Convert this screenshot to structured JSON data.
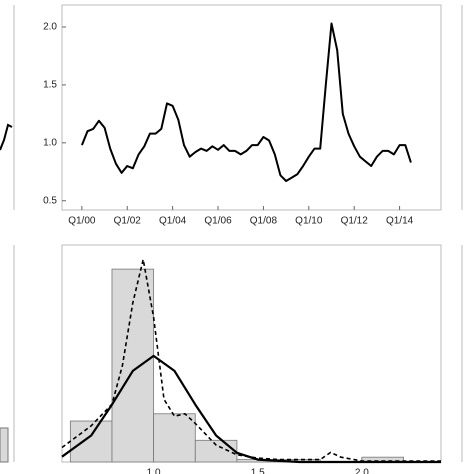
{
  "chart_data": [
    {
      "type": "line",
      "color": "#000000",
      "x": [
        0,
        1,
        2,
        3,
        4,
        5,
        6,
        7,
        8,
        9,
        10,
        11,
        12,
        13,
        14,
        15,
        16,
        17,
        18,
        19,
        20,
        21,
        22,
        23,
        24,
        25,
        26,
        27,
        28,
        29,
        30,
        31,
        32,
        33,
        34,
        35,
        36,
        37,
        38,
        39,
        40,
        41,
        42,
        43,
        44,
        45,
        46,
        47,
        48,
        49,
        50,
        51,
        52,
        53,
        54,
        55,
        56,
        57,
        58
      ],
      "values": [
        0.98,
        1.1,
        1.12,
        1.19,
        1.13,
        0.95,
        0.82,
        0.74,
        0.8,
        0.78,
        0.9,
        0.97,
        1.08,
        1.08,
        1.12,
        1.34,
        1.32,
        1.2,
        0.98,
        0.88,
        0.92,
        0.95,
        0.93,
        0.97,
        0.94,
        0.98,
        0.93,
        0.93,
        0.9,
        0.93,
        0.98,
        0.98,
        1.05,
        1.02,
        0.9,
        0.72,
        0.67,
        0.7,
        0.73,
        0.8,
        0.88,
        0.95,
        0.95,
        1.5,
        2.03,
        1.8,
        1.25,
        1.08,
        0.97,
        0.88,
        0.84,
        0.8,
        0.88,
        0.93,
        0.93,
        0.9,
        0.98,
        0.98,
        0.83
      ],
      "xlim": [
        -3.5,
        63.3
      ],
      "xticks": [
        {
          "value": 0,
          "label": "Q1/00"
        },
        {
          "value": 8,
          "label": "Q1/02"
        },
        {
          "value": 16,
          "label": "Q1/04"
        },
        {
          "value": 24,
          "label": "Q1/06"
        },
        {
          "value": 32,
          "label": "Q1/08"
        },
        {
          "value": 40,
          "label": "Q1/10"
        },
        {
          "value": 48,
          "label": "Q1/12"
        },
        {
          "value": 56,
          "label": "Q1/14"
        }
      ],
      "ylim": [
        0.42,
        2.19
      ],
      "yticks": [
        0.5,
        {
          "value": 1,
          "label": "1.0"
        },
        1.5,
        {
          "value": 2,
          "label": "2.0"
        }
      ]
    },
    {
      "type": "histogram",
      "color": "#d9d9d9",
      "bins": [
        0.6,
        0.8,
        1.0,
        1.2,
        1.4,
        1.6,
        1.8,
        2.0,
        2.2
      ],
      "counts": [
        0.85,
        4.0,
        1.0,
        0.45,
        0.05,
        0.05,
        0,
        0.1
      ],
      "series": [
        {
          "style": "dashed",
          "color": "#000000",
          "x": [
            0.56,
            0.7,
            0.8,
            0.85,
            0.9,
            0.95,
            1.0,
            1.05,
            1.1,
            1.15,
            1.2,
            1.3,
            1.4,
            1.5,
            1.6,
            1.8,
            1.85,
            1.9,
            2.0,
            2.2,
            2.38
          ],
          "values": [
            0.3,
            0.75,
            1.2,
            2.0,
            3.3,
            4.2,
            3.0,
            1.3,
            0.95,
            1.0,
            0.8,
            0.35,
            0.15,
            0.08,
            0.05,
            0.05,
            0.2,
            0.1,
            0.02,
            0.02,
            0.02
          ]
        },
        {
          "style": "solid",
          "color": "#000000",
          "x": [
            0.56,
            0.7,
            0.8,
            0.9,
            1.0,
            1.1,
            1.2,
            1.3,
            1.4,
            1.5,
            1.7,
            2.0,
            2.38
          ],
          "values": [
            0.11,
            0.55,
            1.19,
            1.89,
            2.2,
            1.89,
            1.19,
            0.55,
            0.19,
            0.05,
            0,
            0,
            0
          ]
        }
      ],
      "xlim": [
        0.56,
        2.38
      ],
      "xticks": [
        {
          "value": 1,
          "label": "1.0"
        },
        1.5,
        {
          "value": 2,
          "label": "2.0"
        }
      ],
      "ylim": [
        0,
        4.5
      ]
    }
  ]
}
